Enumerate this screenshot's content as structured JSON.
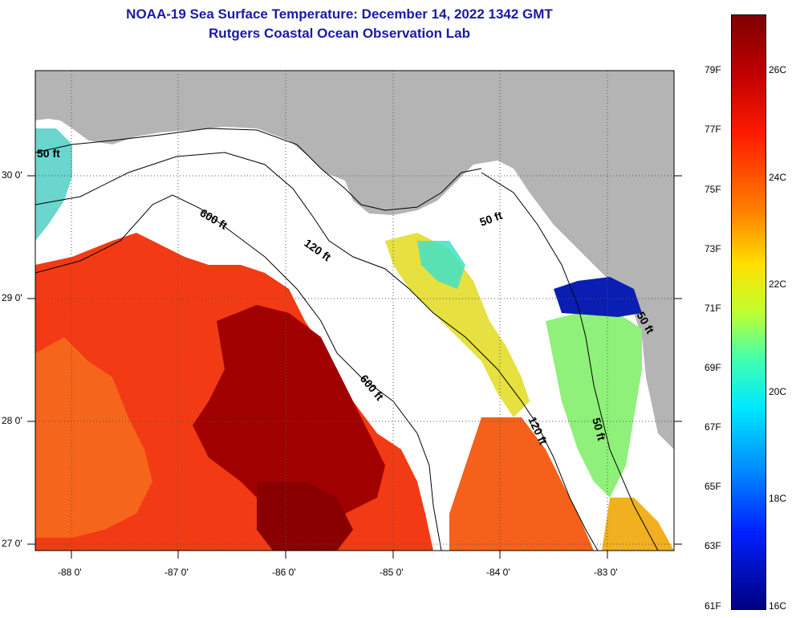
{
  "title": "NOAA-19 Sea Surface Temperature:  December 14, 2022 1342 GMT",
  "subtitle": "Rutgers Coastal Ocean Observation Lab",
  "map": {
    "lon_range": [
      -88.33,
      -82.47
    ],
    "lat_range": [
      26.96,
      30.89
    ],
    "x_ticks": [
      "-88 0'",
      "-87 0'",
      "-86 0'",
      "-85 0'",
      "-84 0'",
      "-83 0'"
    ],
    "y_ticks": [
      "30 0'",
      "29 0'",
      "28 0'",
      "27 0'"
    ],
    "contours": [
      "50 ft",
      "120 ft",
      "600 ft",
      "600 ft",
      "120 ft",
      "50 ft",
      "50 ft",
      "50 ft"
    ],
    "colors": {
      "land": "#b4b4b4",
      "cloud": "#ffffff"
    }
  },
  "colorbar": {
    "fahrenheit": [
      "79F",
      "77F",
      "75F",
      "73F",
      "71F",
      "69F",
      "67F",
      "65F",
      "63F",
      "61F"
    ],
    "celsius": [
      "26C",
      "24C",
      "22C",
      "20C",
      "18C",
      "16C"
    ],
    "colors": [
      "#7f0000",
      "#ff0000",
      "#ff8000",
      "#ffff00",
      "#80ff80",
      "#00ffff",
      "#0080ff",
      "#0000ff",
      "#00007f"
    ]
  }
}
